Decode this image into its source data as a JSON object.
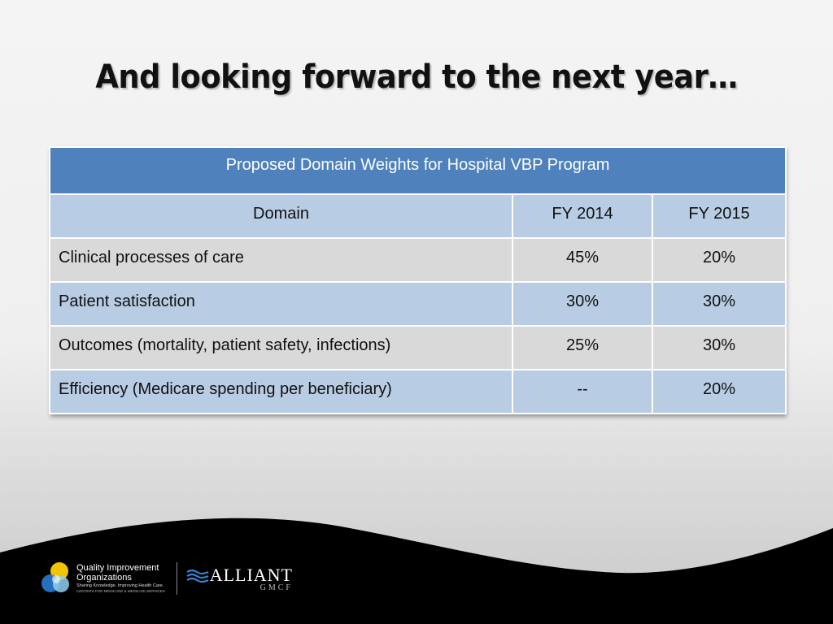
{
  "slide": {
    "title": "And looking forward to the next year…"
  },
  "table": {
    "caption": "Proposed Domain Weights for Hospital VBP Program",
    "headers": [
      "Domain",
      "FY 2014",
      "FY 2015"
    ],
    "rows": [
      {
        "domain": "Clinical processes of care",
        "fy2014": "45%",
        "fy2015": "20%"
      },
      {
        "domain": "Patient satisfaction",
        "fy2014": "30%",
        "fy2015": "30%"
      },
      {
        "domain": "Outcomes (mortality, patient safety, infections)",
        "fy2014": "25%",
        "fy2015": "30%"
      },
      {
        "domain": "Efficiency (Medicare spending per beneficiary)",
        "fy2014": "--",
        "fy2015": "20%"
      }
    ]
  },
  "footer": {
    "qio_logo": {
      "line1": "Quality Improvement",
      "line2": "Organizations",
      "line3": "Sharing Knowledge. Improving Health Care.",
      "line4": "CENTERS FOR MEDICARE & MEDICAID SERVICES"
    },
    "alliant_logo": {
      "name": "ALLIANT",
      "sub": "GMCF"
    }
  },
  "colors": {
    "caption_bg": "#4f81bd",
    "band_blue": "#b8cce4",
    "band_gray": "#d9d9d9",
    "footer_bg": "#000000"
  }
}
